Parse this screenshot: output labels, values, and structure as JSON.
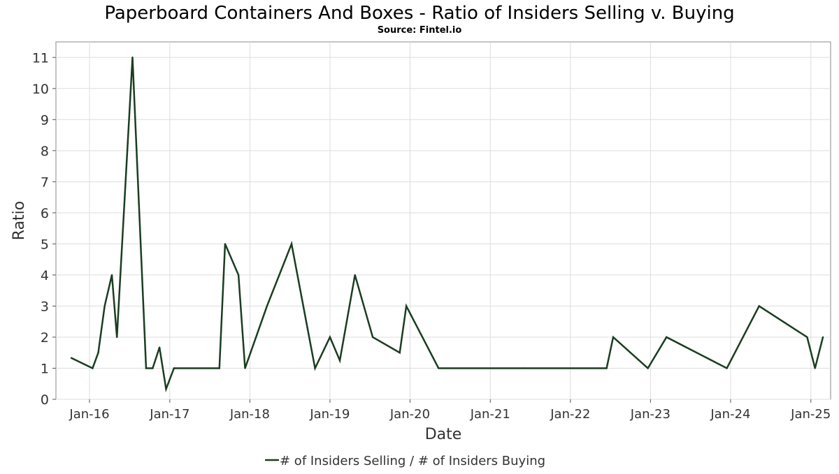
{
  "chart_data": {
    "type": "line",
    "title": "Paperboard Containers And Boxes - Ratio of Insiders Selling v. Buying",
    "subtitle": "Source: Fintel.io",
    "xlabel": "Date",
    "ylabel": "Ratio",
    "x_ticks": [
      {
        "label": "Jan-16",
        "date": "2016-01-01"
      },
      {
        "label": "Jan-17",
        "date": "2017-01-01"
      },
      {
        "label": "Jan-18",
        "date": "2018-01-01"
      },
      {
        "label": "Jan-19",
        "date": "2019-01-01"
      },
      {
        "label": "Jan-20",
        "date": "2020-01-01"
      },
      {
        "label": "Jan-21",
        "date": "2021-01-01"
      },
      {
        "label": "Jan-22",
        "date": "2022-01-01"
      },
      {
        "label": "Jan-23",
        "date": "2023-01-01"
      },
      {
        "label": "Jan-24",
        "date": "2024-01-01"
      },
      {
        "label": "Jan-25",
        "date": "2025-01-01"
      }
    ],
    "y_ticks": [
      0,
      1,
      2,
      3,
      4,
      5,
      6,
      7,
      8,
      9,
      10,
      11
    ],
    "ylim": [
      0,
      11.5
    ],
    "xlim": [
      "2015-08-01",
      "2025-04-01"
    ],
    "grid": true,
    "legend_position": "bottom-center",
    "series": [
      {
        "name": "# of Insiders Selling / # of Insiders Buying",
        "color": "#1a3d21",
        "points": [
          [
            "2015-10-10",
            1.33
          ],
          [
            "2016-01-15",
            1.0
          ],
          [
            "2016-02-10",
            1.5
          ],
          [
            "2016-03-10",
            3.0
          ],
          [
            "2016-04-12",
            4.0
          ],
          [
            "2016-05-05",
            2.0
          ],
          [
            "2016-07-15",
            11.0
          ],
          [
            "2016-09-15",
            1.0
          ],
          [
            "2016-10-15",
            1.0
          ],
          [
            "2016-11-15",
            1.67
          ],
          [
            "2016-12-15",
            0.33
          ],
          [
            "2017-01-20",
            1.0
          ],
          [
            "2017-08-15",
            1.0
          ],
          [
            "2017-09-10",
            5.0
          ],
          [
            "2017-11-10",
            4.0
          ],
          [
            "2017-12-10",
            1.0
          ],
          [
            "2018-03-20",
            3.0
          ],
          [
            "2018-07-10",
            5.0
          ],
          [
            "2018-10-25",
            1.0
          ],
          [
            "2019-01-01",
            2.0
          ],
          [
            "2019-02-15",
            1.25
          ],
          [
            "2019-04-25",
            4.0
          ],
          [
            "2019-07-15",
            2.0
          ],
          [
            "2019-11-15",
            1.5
          ],
          [
            "2019-12-15",
            3.0
          ],
          [
            "2020-05-10",
            1.0
          ],
          [
            "2021-06-01",
            1.0
          ],
          [
            "2022-02-20",
            1.0
          ],
          [
            "2022-03-15",
            1.0
          ],
          [
            "2022-06-15",
            1.0
          ],
          [
            "2022-07-15",
            2.0
          ],
          [
            "2022-12-20",
            1.0
          ],
          [
            "2023-03-15",
            2.0
          ],
          [
            "2023-12-15",
            1.0
          ],
          [
            "2024-05-10",
            3.0
          ],
          [
            "2024-12-15",
            2.0
          ],
          [
            "2025-01-20",
            1.0
          ],
          [
            "2025-02-25",
            2.0
          ]
        ]
      }
    ]
  }
}
